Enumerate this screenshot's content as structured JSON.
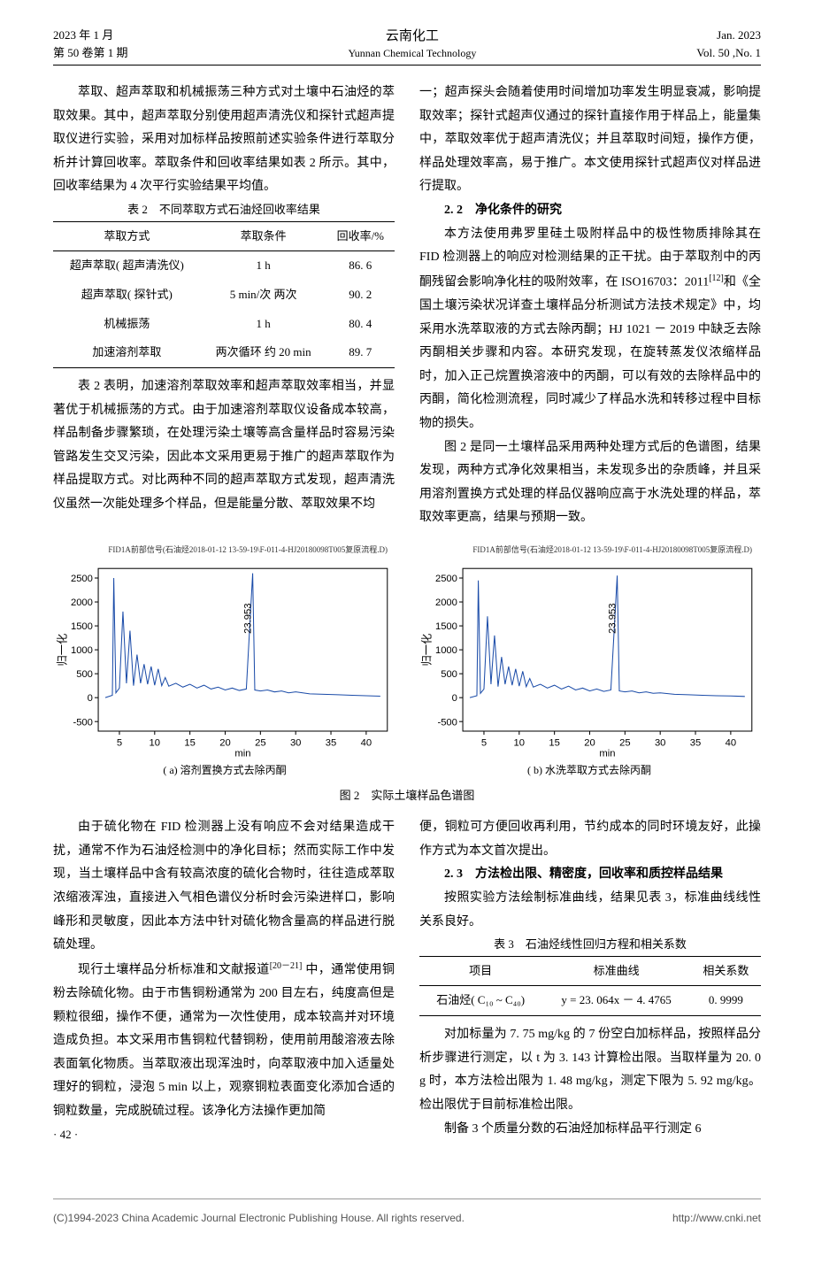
{
  "header": {
    "date_cn": "2023 年 1 月",
    "vol_cn": "第 50 卷第 1 期",
    "journal_cn": "云南化工",
    "journal_en": "Yunnan Chemical Technology",
    "date_en": "Jan. 2023",
    "vol_en": "Vol. 50 ,No. 1"
  },
  "col1": {
    "p1": "萃取、超声萃取和机械振荡三种方式对土壤中石油烃的萃取效果。其中，超声萃取分别使用超声清洗仪和探针式超声提取仪进行实验，采用对加标样品按照前述实验条件进行萃取分析并计算回收率。萃取条件和回收率结果如表 2 所示。其中，回收率结果为 4 次平行实验结果平均值。",
    "t2_caption": "表 2　不同萃取方式石油烃回收率结果",
    "t2_head": [
      "萃取方式",
      "萃取条件",
      "回收率/%"
    ],
    "t2_rows": [
      [
        "超声萃取( 超声清洗仪)",
        "1 h",
        "86. 6"
      ],
      [
        "超声萃取( 探针式)",
        "5 min/次 两次",
        "90. 2"
      ],
      [
        "机械振荡",
        "1 h",
        "80. 4"
      ],
      [
        "加速溶剂萃取",
        "两次循环 约 20 min",
        "89. 7"
      ]
    ],
    "p2": "表 2 表明，加速溶剂萃取效率和超声萃取效率相当，并显著优于机械振荡的方式。由于加速溶剂萃取仪设备成本较高，样品制备步骤繁琐，在处理污染土壤等高含量样品时容易污染管路发生交叉污染，因此本文采用更易于推广的超声萃取作为样品提取方式。对比两种不同的超声萃取方式发现，超声清洗仪虽然一次能处理多个样品，但是能量分散、萃取效果不均",
    "p3": "由于硫化物在 FID 检测器上没有响应不会对结果造成干扰，通常不作为石油烃检测中的净化目标；然而实际工作中发现，当土壤样品中含有较高浓度的硫化合物时，往往造成萃取浓缩液浑浊，直接进入气相色谱仪分析时会污染进样口，影响峰形和灵敏度，因此本方法中针对硫化物含量高的样品进行脱硫处理。",
    "p4_a": "现行土壤样品分析标准和文献报道",
    "p4_sup": "[20－21]",
    "p4_b": " 中，通常使用铜粉去除硫化物。由于市售铜粉通常为 200 目左右，纯度高但是颗粒很细，操作不便，通常为一次性使用，成本较高并对环境造成负担。本文采用市售铜粒代替铜粉，使用前用酸溶液去除表面氧化物质。当萃取液出现浑浊时，向萃取液中加入适量处理好的铜粒，浸泡 5 min 以上，观察铜粒表面变化添加合适的铜粒数量，完成脱硫过程。该净化方法操作更加简",
    "page_num": "· 42 ·"
  },
  "col2": {
    "p1": "一；超声探头会随着使用时间增加功率发生明显衰减，影响提取效率；探针式超声仪通过的探针直接作用于样品上，能量集中，萃取效率优于超声清洗仪；并且萃取时间短，操作方便，样品处理效率高，易于推广。本文使用探针式超声仪对样品进行提取。",
    "s22": "2. 2　净化条件的研究",
    "p2_a": "本方法使用弗罗里硅土吸附样品中的极性物质排除其在 FID 检测器上的响应对检测结果的正干扰。由于萃取剂中的丙酮残留会影响净化柱的吸附效率，在 ISO16703：2011",
    "p2_sup": "[12]",
    "p2_b": "和《全国土壤污染状况详查土壤样品分析测试方法技术规定》中，均采用水洗萃取液的方式去除丙酮；HJ 1021 － 2019 中缺乏去除丙酮相关步骤和内容。本研究发现，在旋转蒸发仪浓缩样品时，加入正己烷置换溶液中的丙酮，可以有效的去除样品中的丙酮，简化检测流程，同时减少了样品水洗和转移过程中目标物的损失。",
    "p3": "图 2 是同一土壤样品采用两种处理方式后的色谱图，结果发现，两种方式净化效果相当，未发现多出的杂质峰，并且采用溶剂置换方式处理的样品仪器响应高于水洗处理的样品，萃取效率更高，结果与预期一致。",
    "p4": "便，铜粒可方便回收再利用，节约成本的同时环境友好，此操作方式为本文首次提出。",
    "s23": "2. 3　方法检出限、精密度，回收率和质控样品结果",
    "p5": "按照实验方法绘制标准曲线，结果见表 3，标准曲线线性关系良好。",
    "t3_caption": "表 3　石油烃线性回归方程和相关系数",
    "t3_head": [
      "项目",
      "标准曲线",
      "相关系数"
    ],
    "t3_row": [
      "石油烃( C₁₀ ~ C₄₀)",
      "y = 23. 064x － 4. 4765",
      "0. 9999"
    ],
    "p6": "对加标量为 7. 75 mg/kg 的 7 份空白加标样品，按照样品分析步骤进行测定，以 t 为 3. 143 计算检出限。当取样量为 20. 0 g 时，本方法检出限为 1. 48 mg/kg，测定下限为 5. 92 mg/kg。检出限优于目前标准检出限。",
    "p7": "制备 3 个质量分数的石油烃加标样品平行测定 6"
  },
  "figure": {
    "top_title": "FID1A前部信号(石油烃2018-01-12 13-59-19\\F-011-4-HJ20180098T005复原流程.D)",
    "chart": {
      "type": "line",
      "x": [
        3,
        5,
        10,
        15,
        20,
        25,
        30,
        35,
        40,
        42
      ],
      "y_ticks": [
        -500,
        0,
        500,
        1000,
        1500,
        2000,
        2500
      ],
      "x_ticks": [
        5,
        10,
        15,
        20,
        25,
        30,
        35,
        40
      ],
      "ylabel": "归一化",
      "xlabel": "min",
      "peak_label": "23.953",
      "line_color": "#1a4ba8",
      "grid_color": "#000",
      "bg": "#ffffff",
      "font_size_axis": 11,
      "ylim": [
        -700,
        2700
      ],
      "xlim": [
        2,
        43
      ],
      "series_a": [
        [
          3,
          0
        ],
        [
          4,
          50
        ],
        [
          4.2,
          2500
        ],
        [
          4.5,
          100
        ],
        [
          5,
          200
        ],
        [
          5.5,
          1800
        ],
        [
          6,
          300
        ],
        [
          6.5,
          1400
        ],
        [
          7,
          250
        ],
        [
          7.5,
          900
        ],
        [
          8,
          300
        ],
        [
          8.5,
          700
        ],
        [
          9,
          280
        ],
        [
          9.5,
          650
        ],
        [
          10,
          260
        ],
        [
          10.5,
          600
        ],
        [
          11,
          250
        ],
        [
          11.5,
          420
        ],
        [
          12,
          240
        ],
        [
          13,
          300
        ],
        [
          14,
          220
        ],
        [
          15,
          280
        ],
        [
          16,
          200
        ],
        [
          17,
          260
        ],
        [
          18,
          180
        ],
        [
          19,
          220
        ],
        [
          20,
          160
        ],
        [
          21,
          200
        ],
        [
          22,
          150
        ],
        [
          23,
          180
        ],
        [
          23.9,
          2600
        ],
        [
          24.2,
          160
        ],
        [
          25,
          140
        ],
        [
          26,
          160
        ],
        [
          27,
          120
        ],
        [
          28,
          140
        ],
        [
          29,
          100
        ],
        [
          30,
          120
        ],
        [
          32,
          80
        ],
        [
          34,
          70
        ],
        [
          36,
          60
        ],
        [
          38,
          50
        ],
        [
          40,
          40
        ],
        [
          42,
          30
        ]
      ],
      "series_b": [
        [
          3,
          0
        ],
        [
          4,
          40
        ],
        [
          4.2,
          2450
        ],
        [
          4.5,
          90
        ],
        [
          5,
          180
        ],
        [
          5.5,
          1700
        ],
        [
          6,
          280
        ],
        [
          6.5,
          1300
        ],
        [
          7,
          230
        ],
        [
          7.5,
          850
        ],
        [
          8,
          280
        ],
        [
          8.5,
          650
        ],
        [
          9,
          260
        ],
        [
          9.5,
          600
        ],
        [
          10,
          240
        ],
        [
          10.5,
          550
        ],
        [
          11,
          230
        ],
        [
          11.5,
          400
        ],
        [
          12,
          220
        ],
        [
          13,
          280
        ],
        [
          14,
          200
        ],
        [
          15,
          260
        ],
        [
          16,
          180
        ],
        [
          17,
          240
        ],
        [
          18,
          160
        ],
        [
          19,
          200
        ],
        [
          20,
          140
        ],
        [
          21,
          180
        ],
        [
          22,
          130
        ],
        [
          23,
          160
        ],
        [
          23.9,
          2550
        ],
        [
          24.2,
          140
        ],
        [
          25,
          120
        ],
        [
          26,
          140
        ],
        [
          27,
          100
        ],
        [
          28,
          120
        ],
        [
          29,
          90
        ],
        [
          30,
          100
        ],
        [
          32,
          70
        ],
        [
          34,
          60
        ],
        [
          36,
          50
        ],
        [
          38,
          40
        ],
        [
          40,
          35
        ],
        [
          42,
          25
        ]
      ]
    },
    "sub_a": "( a) 溶剂置换方式去除丙酮",
    "sub_b": "( b) 水洗萃取方式去除丙酮",
    "caption": "图 2　实际土壤样品色谱图"
  },
  "footer": {
    "left": "(C)1994-2023 China Academic Journal Electronic Publishing House. All rights reserved.",
    "right": "http://www.cnki.net"
  }
}
